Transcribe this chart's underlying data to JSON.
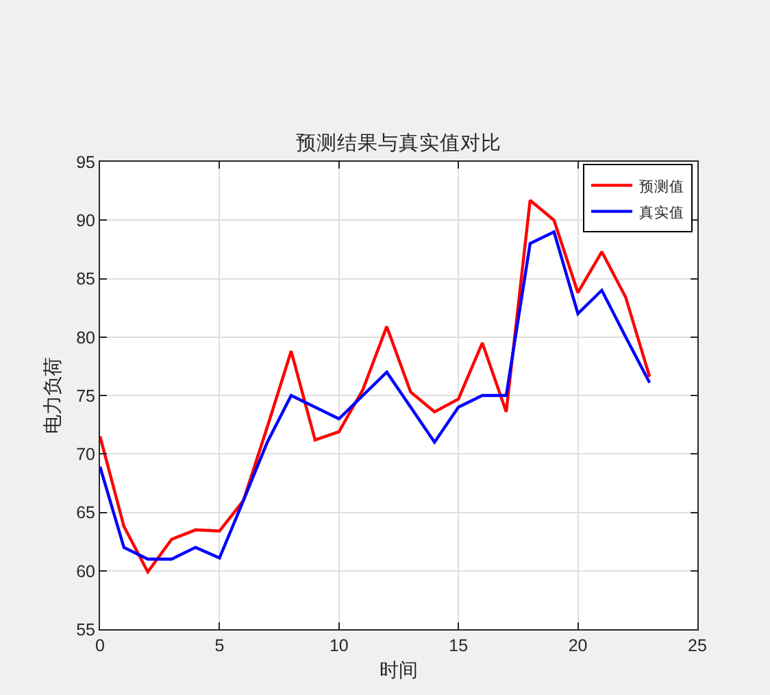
{
  "chart_data": {
    "type": "line",
    "title": "预测结果与真实值对比",
    "xlabel": "时间",
    "ylabel": "电力负荷",
    "x": [
      0,
      1,
      2,
      3,
      4,
      5,
      6,
      7,
      8,
      9,
      10,
      11,
      12,
      13,
      14,
      15,
      16,
      17,
      18,
      19,
      20,
      21,
      22,
      23
    ],
    "series": [
      {
        "name": "预测值",
        "color": "#ff0000",
        "values": [
          71.5,
          63.8,
          59.9,
          62.7,
          63.5,
          63.4,
          66.0,
          72.3,
          78.8,
          71.2,
          71.9,
          75.5,
          80.9,
          75.3,
          73.6,
          74.7,
          79.5,
          73.6,
          91.7,
          90.0,
          83.8,
          87.3,
          83.4,
          76.6
        ]
      },
      {
        "name": "真实值",
        "color": "#0000ff",
        "values": [
          68.9,
          62.0,
          61.0,
          61.0,
          62.0,
          61.1,
          66.0,
          71.0,
          75.0,
          74.0,
          73.0,
          75.0,
          77.0,
          74.0,
          71.0,
          74.0,
          75.0,
          75.0,
          88.0,
          89.0,
          82.0,
          84.0,
          80.0,
          76.1
        ]
      }
    ],
    "xlim": [
      0,
      25
    ],
    "xticks": [
      0,
      5,
      10,
      15,
      20,
      25
    ],
    "ylim": [
      55,
      95
    ],
    "yticks": [
      55,
      60,
      65,
      70,
      75,
      80,
      85,
      90,
      95
    ],
    "grid": true,
    "legend": "top right",
    "line_style": "solid"
  }
}
